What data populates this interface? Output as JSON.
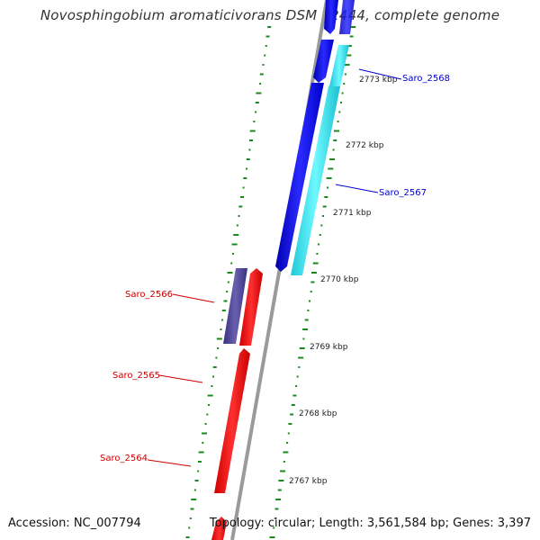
{
  "title": "Novosphingobium aromaticivorans DSM 12444, complete genome",
  "accession": "Accession: NC_007794",
  "summary": "Topology: circular; Length: 3,561,584 bp; Genes: 3,397",
  "ticks": [
    {
      "label": "2773 kbp"
    },
    {
      "label": "2772 kbp"
    },
    {
      "label": "2771 kbp"
    },
    {
      "label": "2770 kbp"
    },
    {
      "label": "2769 kbp"
    },
    {
      "label": "2768 kbp"
    },
    {
      "label": "2767 kbp"
    }
  ],
  "gene_labels": [
    {
      "text": "Saro_2568",
      "color": "#0000cc"
    },
    {
      "text": "Saro_2567",
      "color": "#0000cc"
    },
    {
      "text": "Saro_2566",
      "color": "#cc0000"
    },
    {
      "text": "Saro_2565",
      "color": "#cc0000"
    },
    {
      "text": "Saro_2564",
      "color": "#cc0000"
    }
  ],
  "colors": {
    "forward_cds": "#0000ff",
    "forward_rna": "#00e0f0",
    "reverse_cds": "#ff0000",
    "reverse_other": "#4a3f8c",
    "gc_skew": "#1a8a1a",
    "backbone": "#999999"
  }
}
